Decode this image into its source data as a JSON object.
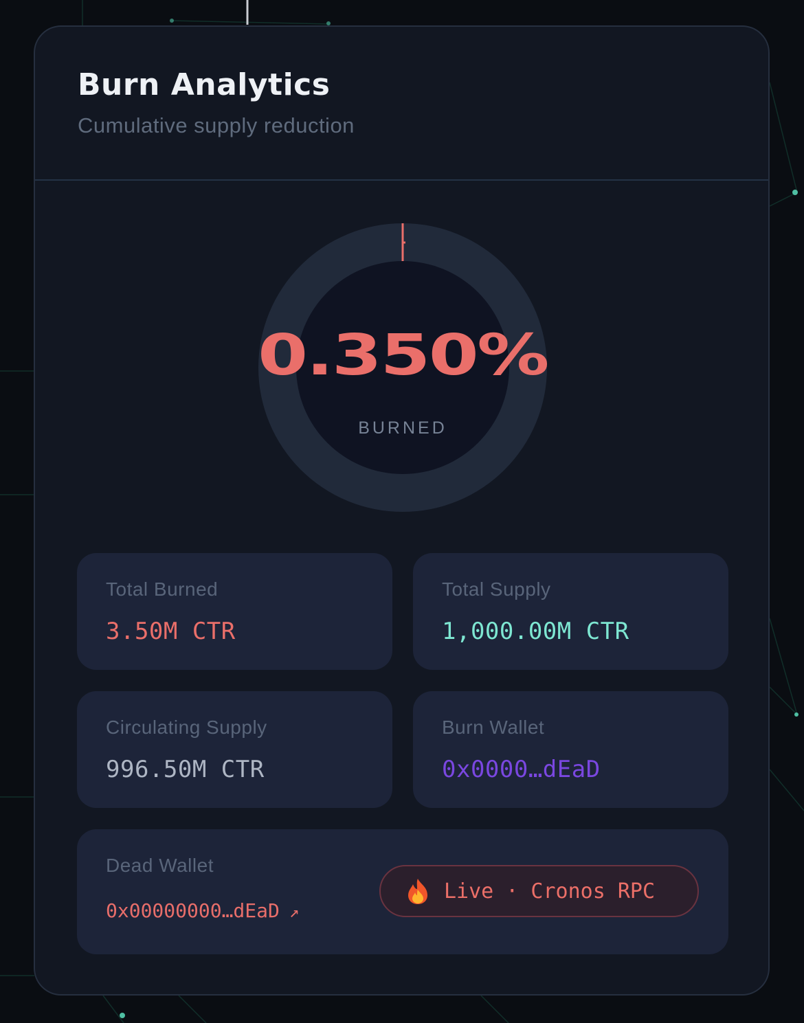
{
  "colors": {
    "accent_burn": "#ea6f6a",
    "accent_supply": "#7ee7d2",
    "accent_wallet": "#7a47e0",
    "text_circulating": "#aeb6c4"
  },
  "header": {
    "title": "Burn Analytics",
    "subtitle": "Cumulative supply reduction"
  },
  "gauge": {
    "value_text": "0.350%",
    "label": "BURNED",
    "burned_fraction": 0.0035
  },
  "stats": [
    {
      "label": "Total Burned",
      "value": "3.50M CTR"
    },
    {
      "label": "Total Supply",
      "value": "1,000.00M CTR"
    },
    {
      "label": "Circulating Supply",
      "value": "996.50M CTR"
    },
    {
      "label": "Burn Wallet",
      "value": "0x0000…dEaD"
    }
  ],
  "dead_wallet": {
    "label": "Dead Wallet",
    "address": "0x00000000…dEaD",
    "arrow": "↗"
  },
  "status_pill": {
    "icon": "fire-icon",
    "text": "Live · Cronos RPC"
  }
}
